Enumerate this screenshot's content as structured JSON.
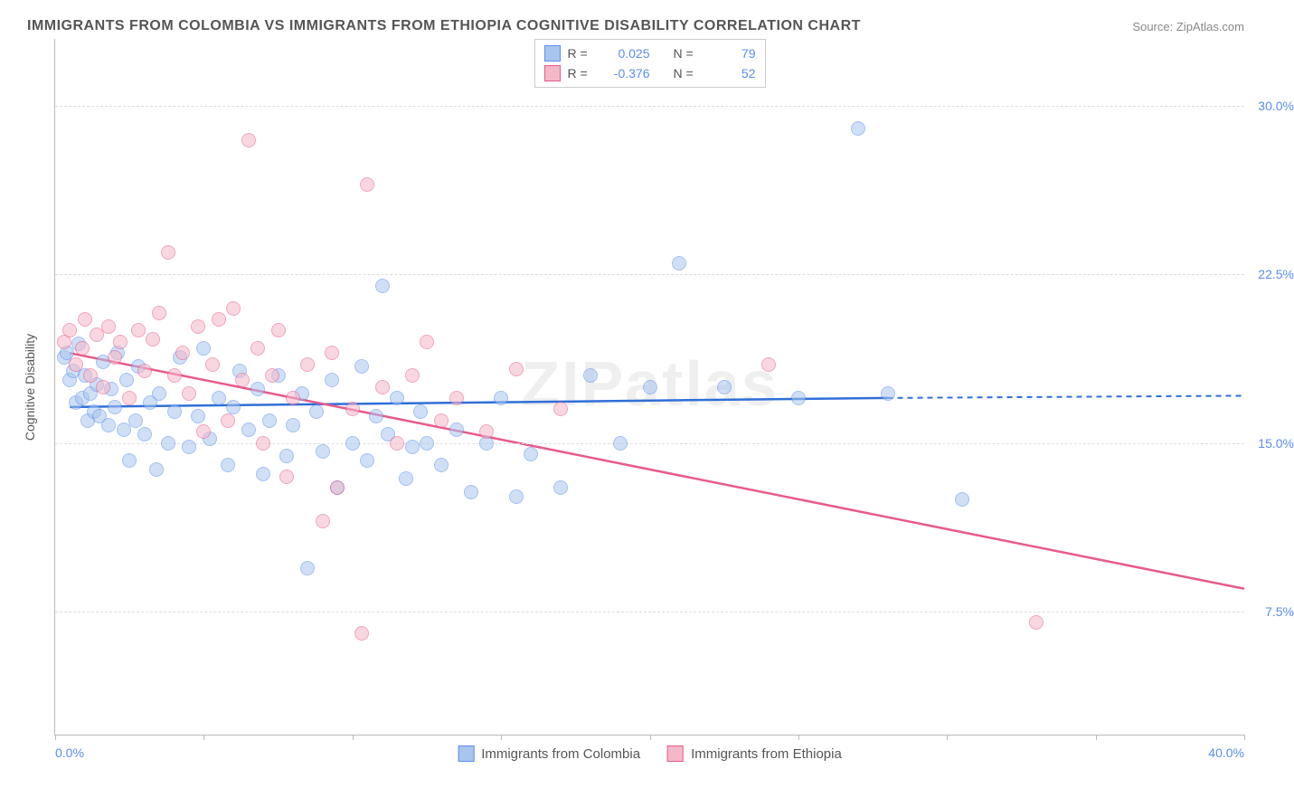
{
  "title": "IMMIGRANTS FROM COLOMBIA VS IMMIGRANTS FROM ETHIOPIA COGNITIVE DISABILITY CORRELATION CHART",
  "source_label": "Source:",
  "source_value": "ZipAtlas.com",
  "watermark": "ZIPatlas",
  "y_axis_title": "Cognitive Disability",
  "chart": {
    "type": "scatter",
    "xlim": [
      0,
      40
    ],
    "ylim": [
      2,
      33
    ],
    "x_ticks": [
      0,
      5,
      10,
      15,
      20,
      25,
      30,
      35,
      40
    ],
    "x_label_min": "0.0%",
    "x_label_max": "40.0%",
    "y_ticks": [
      7.5,
      15.0,
      22.5,
      30.0
    ],
    "y_tick_labels": [
      "7.5%",
      "15.0%",
      "22.5%",
      "30.0%"
    ],
    "grid_color": "#dddddd",
    "axis_color": "#bbbbbb",
    "background": "#ffffff",
    "marker_radius": 8,
    "marker_opacity": 0.55,
    "series": [
      {
        "name": "Immigrants from Colombia",
        "fill": "#a8c5ed",
        "stroke": "#5b8def",
        "line_color": "#2f6fd8",
        "r_label": "R =",
        "r_value": "0.025",
        "n_label": "N =",
        "n_value": "79",
        "trend": {
          "x1": 0.5,
          "y1": 16.6,
          "x2": 28,
          "y2": 17.0,
          "dash_x2": 40,
          "dash_y2": 17.1
        },
        "points": [
          [
            0.3,
            18.8
          ],
          [
            0.4,
            19.0
          ],
          [
            0.5,
            17.8
          ],
          [
            0.6,
            18.2
          ],
          [
            0.7,
            16.8
          ],
          [
            0.8,
            19.4
          ],
          [
            0.9,
            17.0
          ],
          [
            1.0,
            18.0
          ],
          [
            1.1,
            16.0
          ],
          [
            1.2,
            17.2
          ],
          [
            1.3,
            16.4
          ],
          [
            1.4,
            17.6
          ],
          [
            1.5,
            16.2
          ],
          [
            1.6,
            18.6
          ],
          [
            1.8,
            15.8
          ],
          [
            1.9,
            17.4
          ],
          [
            2.0,
            16.6
          ],
          [
            2.1,
            19.0
          ],
          [
            2.3,
            15.6
          ],
          [
            2.4,
            17.8
          ],
          [
            2.5,
            14.2
          ],
          [
            2.7,
            16.0
          ],
          [
            2.8,
            18.4
          ],
          [
            3.0,
            15.4
          ],
          [
            3.2,
            16.8
          ],
          [
            3.4,
            13.8
          ],
          [
            3.5,
            17.2
          ],
          [
            3.8,
            15.0
          ],
          [
            4.0,
            16.4
          ],
          [
            4.2,
            18.8
          ],
          [
            4.5,
            14.8
          ],
          [
            4.8,
            16.2
          ],
          [
            5.0,
            19.2
          ],
          [
            5.2,
            15.2
          ],
          [
            5.5,
            17.0
          ],
          [
            5.8,
            14.0
          ],
          [
            6.0,
            16.6
          ],
          [
            6.2,
            18.2
          ],
          [
            6.5,
            15.6
          ],
          [
            6.8,
            17.4
          ],
          [
            7.0,
            13.6
          ],
          [
            7.2,
            16.0
          ],
          [
            7.5,
            18.0
          ],
          [
            7.8,
            14.4
          ],
          [
            8.0,
            15.8
          ],
          [
            8.3,
            17.2
          ],
          [
            8.5,
            9.4
          ],
          [
            8.8,
            16.4
          ],
          [
            9.0,
            14.6
          ],
          [
            9.3,
            17.8
          ],
          [
            9.5,
            13.0
          ],
          [
            10.0,
            15.0
          ],
          [
            10.3,
            18.4
          ],
          [
            10.5,
            14.2
          ],
          [
            10.8,
            16.2
          ],
          [
            11.0,
            22.0
          ],
          [
            11.2,
            15.4
          ],
          [
            11.5,
            17.0
          ],
          [
            11.8,
            13.4
          ],
          [
            12.0,
            14.8
          ],
          [
            12.3,
            16.4
          ],
          [
            12.5,
            15.0
          ],
          [
            13.0,
            14.0
          ],
          [
            13.5,
            15.6
          ],
          [
            14.0,
            12.8
          ],
          [
            14.5,
            15.0
          ],
          [
            15.0,
            17.0
          ],
          [
            15.5,
            12.6
          ],
          [
            16.0,
            14.5
          ],
          [
            17.0,
            13.0
          ],
          [
            18.0,
            18.0
          ],
          [
            19.0,
            15.0
          ],
          [
            20.0,
            17.5
          ],
          [
            21.0,
            23.0
          ],
          [
            22.5,
            17.5
          ],
          [
            25.0,
            17.0
          ],
          [
            27.0,
            29.0
          ],
          [
            28.0,
            17.2
          ],
          [
            30.5,
            12.5
          ]
        ]
      },
      {
        "name": "Immigrants from Ethiopia",
        "fill": "#f5b8c8",
        "stroke": "#e85a8a",
        "line_color": "#e85a8a",
        "r_label": "R =",
        "r_value": "-0.376",
        "n_label": "N =",
        "n_value": "52",
        "trend": {
          "x1": 0.5,
          "y1": 19.0,
          "x2": 40,
          "y2": 8.5
        },
        "points": [
          [
            0.3,
            19.5
          ],
          [
            0.5,
            20.0
          ],
          [
            0.7,
            18.5
          ],
          [
            0.9,
            19.2
          ],
          [
            1.0,
            20.5
          ],
          [
            1.2,
            18.0
          ],
          [
            1.4,
            19.8
          ],
          [
            1.6,
            17.5
          ],
          [
            1.8,
            20.2
          ],
          [
            2.0,
            18.8
          ],
          [
            2.2,
            19.5
          ],
          [
            2.5,
            17.0
          ],
          [
            2.8,
            20.0
          ],
          [
            3.0,
            18.2
          ],
          [
            3.3,
            19.6
          ],
          [
            3.5,
            20.8
          ],
          [
            3.8,
            23.5
          ],
          [
            4.0,
            18.0
          ],
          [
            4.3,
            19.0
          ],
          [
            4.5,
            17.2
          ],
          [
            4.8,
            20.2
          ],
          [
            5.0,
            15.5
          ],
          [
            5.3,
            18.5
          ],
          [
            5.5,
            20.5
          ],
          [
            5.8,
            16.0
          ],
          [
            6.0,
            21.0
          ],
          [
            6.3,
            17.8
          ],
          [
            6.5,
            28.5
          ],
          [
            6.8,
            19.2
          ],
          [
            7.0,
            15.0
          ],
          [
            7.3,
            18.0
          ],
          [
            7.5,
            20.0
          ],
          [
            7.8,
            13.5
          ],
          [
            8.0,
            17.0
          ],
          [
            8.5,
            18.5
          ],
          [
            9.0,
            11.5
          ],
          [
            9.3,
            19.0
          ],
          [
            9.5,
            13.0
          ],
          [
            10.0,
            16.5
          ],
          [
            10.3,
            6.5
          ],
          [
            10.5,
            26.5
          ],
          [
            11.0,
            17.5
          ],
          [
            11.5,
            15.0
          ],
          [
            12.0,
            18.0
          ],
          [
            12.5,
            19.5
          ],
          [
            13.0,
            16.0
          ],
          [
            13.5,
            17.0
          ],
          [
            14.5,
            15.5
          ],
          [
            15.5,
            18.3
          ],
          [
            17.0,
            16.5
          ],
          [
            24.0,
            18.5
          ],
          [
            33.0,
            7.0
          ]
        ]
      }
    ]
  },
  "legend_bottom": [
    {
      "label": "Immigrants from Colombia",
      "fill": "#a8c5ed",
      "stroke": "#5b8def"
    },
    {
      "label": "Immigrants from Ethiopia",
      "fill": "#f5b8c8",
      "stroke": "#e85a8a"
    }
  ]
}
